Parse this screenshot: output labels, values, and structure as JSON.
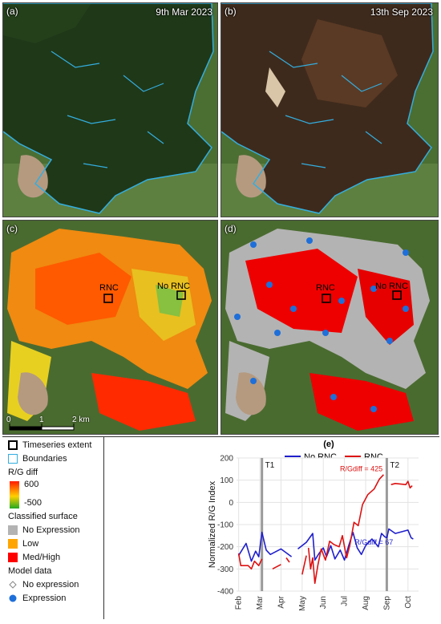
{
  "panels": {
    "a": {
      "label": "(a)",
      "date": "9th Mar 2023"
    },
    "b": {
      "label": "(b)",
      "date": "13th Sep 2023"
    },
    "c": {
      "label": "(c)",
      "site_rnc": "RNC",
      "site_no_rnc": "No RNC"
    },
    "d": {
      "label": "(d)",
      "site_rnc": "RNC",
      "site_no_rnc": "No RNC"
    }
  },
  "scalebar": {
    "ticks": [
      "0",
      "1",
      "2 km"
    ]
  },
  "legend": {
    "timeseries_extent": "Timeseries extent",
    "boundaries": "Boundaries",
    "rg_diff_title": "R/G diff",
    "rg_diff_max": "600",
    "rg_diff_min": "-500",
    "classified_title": "Classified surface",
    "classes": [
      {
        "label": "No Expression",
        "color": "#b3b3b3"
      },
      {
        "label": "Low",
        "color": "#ffa500"
      },
      {
        "label": "Med/High",
        "color": "#ff0000"
      }
    ],
    "model_title": "Model data",
    "model_items": [
      {
        "label": "No expression",
        "symbol": "diamond-icon"
      },
      {
        "label": "Expression",
        "symbol": "circle-icon",
        "color": "#1e6fd9"
      }
    ]
  },
  "chart_data": {
    "type": "line",
    "panel_label": "(e)",
    "ylabel": "Normalized R/G Index",
    "ylim": [
      -400,
      200
    ],
    "yticks": [
      -400,
      -300,
      -200,
      -100,
      0,
      100,
      200
    ],
    "xlim": [
      0,
      8.6
    ],
    "xticks": [
      0.1,
      1.1,
      2.1,
      3.1,
      4.1,
      5.1,
      6.1,
      7.1,
      8.1
    ],
    "xtick_labels": [
      "Feb",
      "Mar",
      "Apr",
      "May",
      "Jun",
      "Jul",
      "Aug",
      "Sep",
      "Oct"
    ],
    "vlines": [
      {
        "x": 1.2,
        "label": "T1"
      },
      {
        "x": 7.1,
        "label": "T2"
      }
    ],
    "legend": [
      "No RNC",
      "RNC"
    ],
    "series": [
      {
        "name": "No RNC",
        "color": "#1f1fcc",
        "segments": [
          [
            [
              0.1,
              -240
            ],
            [
              0.45,
              -185
            ],
            [
              0.7,
              -265
            ],
            [
              0.9,
              -220
            ],
            [
              1.05,
              -245
            ],
            [
              1.2,
              -135
            ],
            [
              1.4,
              -215
            ],
            [
              1.6,
              -235
            ],
            [
              2.1,
              -210
            ],
            [
              2.6,
              -245
            ]
          ],
          [
            [
              2.9,
              -210
            ],
            [
              3.3,
              -180
            ],
            [
              3.6,
              -140
            ],
            [
              3.7,
              -260
            ],
            [
              3.9,
              -230
            ],
            [
              4.1,
              -205
            ],
            [
              4.25,
              -245
            ],
            [
              4.45,
              -195
            ],
            [
              4.65,
              -255
            ],
            [
              4.9,
              -215
            ],
            [
              5.1,
              -260
            ],
            [
              5.3,
              -195
            ],
            [
              5.5,
              -135
            ],
            [
              5.7,
              -205
            ],
            [
              5.9,
              -235
            ],
            [
              6.1,
              -195
            ],
            [
              6.4,
              -165
            ],
            [
              6.7,
              -200
            ],
            [
              6.85,
              -140
            ],
            [
              7.0,
              -155
            ],
            [
              7.1,
              -160
            ],
            [
              7.2,
              -120
            ],
            [
              7.5,
              -140
            ],
            [
              8.1,
              -125
            ],
            [
              8.25,
              -160
            ],
            [
              8.35,
              -165
            ]
          ]
        ]
      },
      {
        "name": "RNC",
        "color": "#dd1111",
        "segments": [
          [
            [
              0.1,
              -230
            ],
            [
              0.2,
              -285
            ],
            [
              0.55,
              -285
            ],
            [
              0.7,
              -300
            ],
            [
              0.85,
              -265
            ],
            [
              1.05,
              -285
            ],
            [
              1.2,
              -255
            ]
          ],
          [
            [
              1.7,
              -300
            ],
            [
              2.1,
              -280
            ]
          ],
          [
            [
              2.35,
              -250
            ],
            [
              2.5,
              -270
            ]
          ],
          [
            [
              3.1,
              -325
            ],
            [
              3.3,
              -240
            ]
          ],
          [
            [
              3.4,
              -205
            ],
            [
              3.5,
              -300
            ],
            [
              3.6,
              -250
            ],
            [
              3.7,
              -365
            ],
            [
              3.85,
              -280
            ],
            [
              4.0,
              -210
            ],
            [
              4.2,
              -260
            ],
            [
              4.4,
              -175
            ],
            [
              4.6,
              -190
            ],
            [
              4.85,
              -200
            ],
            [
              5.0,
              -150
            ],
            [
              5.2,
              -250
            ],
            [
              5.35,
              -195
            ],
            [
              5.55,
              -90
            ],
            [
              5.75,
              -105
            ],
            [
              5.95,
              -10
            ],
            [
              6.2,
              35
            ],
            [
              6.5,
              60
            ],
            [
              6.75,
              105
            ],
            [
              6.95,
              125
            ]
          ],
          [
            [
              7.3,
              80
            ],
            [
              7.5,
              85
            ],
            [
              8.0,
              80
            ],
            [
              8.1,
              95
            ],
            [
              8.2,
              65
            ],
            [
              8.3,
              75
            ]
          ]
        ]
      }
    ],
    "annotations": [
      {
        "text": "R/Gdiff = 425",
        "x": 6.9,
        "y": 140,
        "color": "#dd1111"
      },
      {
        "text": "R/Gdiff = 67",
        "x": 7.4,
        "y": -190,
        "color": "#1f1fcc"
      }
    ]
  }
}
